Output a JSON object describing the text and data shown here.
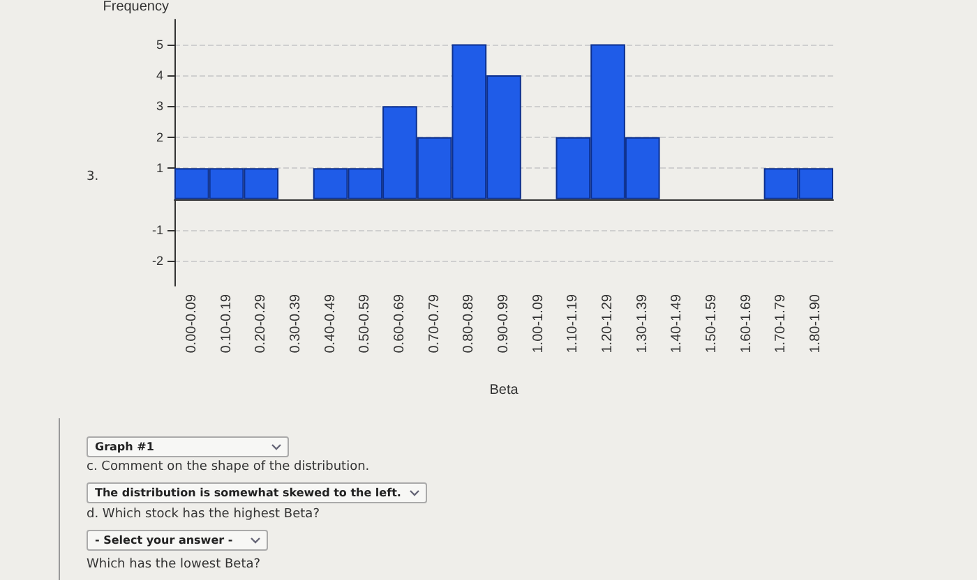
{
  "chart_data": {
    "type": "bar",
    "xlabel": "Beta",
    "ylabel": "Frequency",
    "categories": [
      "0.00-0.09",
      "0.10-0.19",
      "0.20-0.29",
      "0.30-0.39",
      "0.40-0.49",
      "0.50-0.59",
      "0.60-0.69",
      "0.70-0.79",
      "0.80-0.89",
      "0.90-0.99",
      "1.00-1.09",
      "1.10-1.19",
      "1.20-1.29",
      "1.30-1.39",
      "1.40-1.49",
      "1.50-1.59",
      "1.60-1.69",
      "1.70-1.79",
      "1.80-1.90"
    ],
    "values": [
      1,
      1,
      1,
      0,
      1,
      1,
      3,
      2,
      5,
      4,
      0,
      2,
      5,
      2,
      0,
      0,
      0,
      1,
      1
    ],
    "color": "#1f5ce8",
    "ylim": [
      -2.8,
      5.8
    ],
    "yticks": [
      -2,
      -1,
      1,
      2,
      3,
      4,
      5
    ],
    "grid": "y",
    "annotations": [
      "3.",
      "Graph #1",
      "c. Comment on the shape of the distribution.",
      "The distribution is somewhat skewed to the left.",
      "d. Which stock has the highest Beta?",
      "- Select your answer -",
      "Which has the lowest Beta?"
    ]
  }
}
